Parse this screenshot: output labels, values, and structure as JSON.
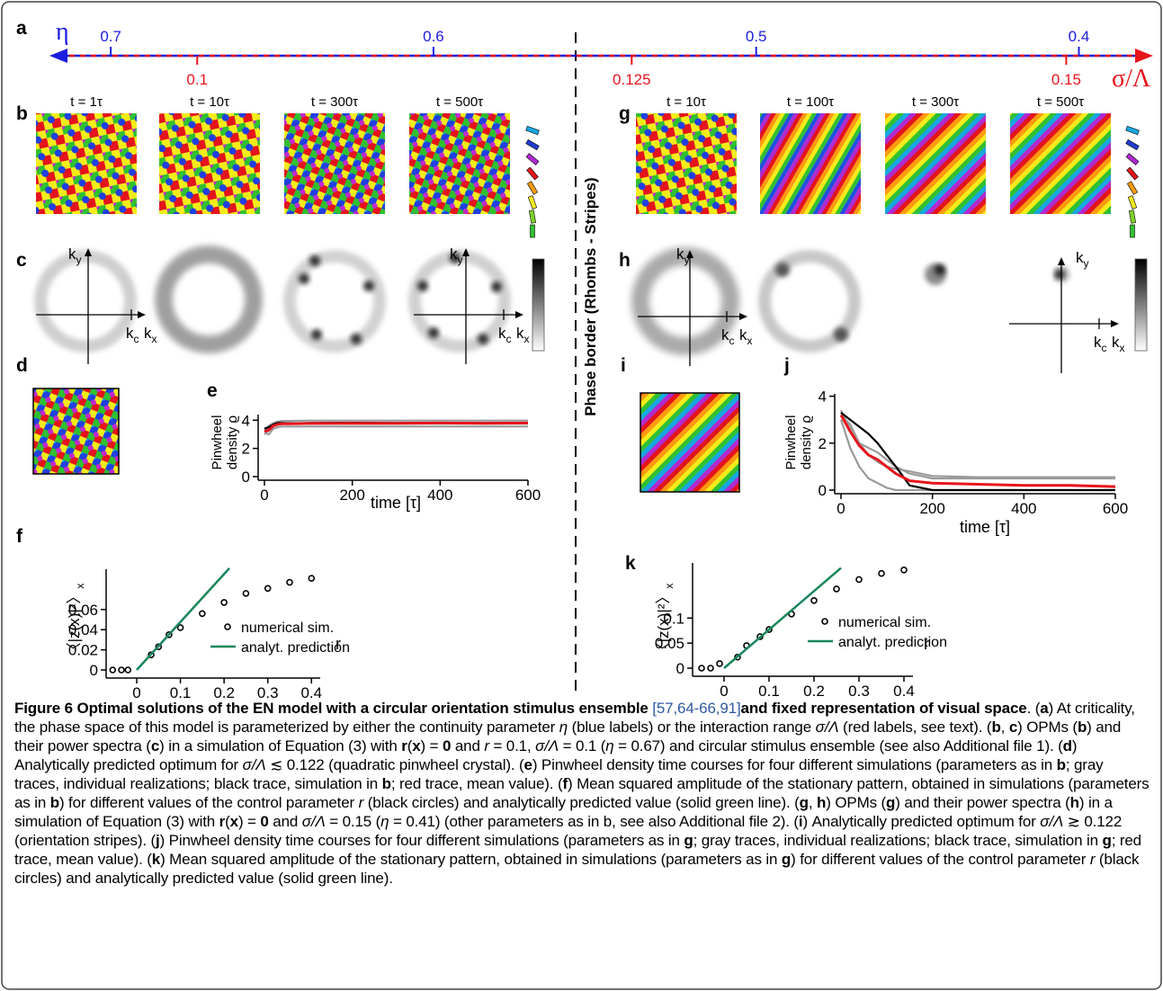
{
  "figure": {
    "panel_labels": [
      "a",
      "b",
      "c",
      "d",
      "e",
      "f",
      "g",
      "h",
      "i",
      "j",
      "k"
    ],
    "eta_symbol": "η",
    "sigma_symbol": "σ/Λ",
    "eta_axis": {
      "lim": [
        0.719,
        0.377
      ],
      "ticks": [
        0.7,
        0.6,
        0.5,
        0.4
      ]
    },
    "sigma_axis": {
      "lim": [
        0.0915,
        0.155
      ],
      "ticks": [
        0.1,
        0.125,
        0.15
      ]
    },
    "phase_border": "Phase border (Rhombs - Stripes)",
    "times_b": [
      "t = 1τ",
      "t = 10τ",
      "t = 300τ",
      "t = 500τ"
    ],
    "times_g": [
      "t = 10τ",
      "t = 100τ",
      "t = 300τ",
      "t = 500τ"
    ],
    "kspace": {
      "k": "k",
      "x": "x",
      "y": "y",
      "c": "c"
    },
    "caption": [
      {
        "text": "Figure 6 Optimal solutions of the EN model with a circular orientation stimulus ensemble ",
        "style": "b"
      },
      {
        "text": "[57,64-66,91]",
        "style": "c"
      },
      {
        "text": "and fixed representation of visual space",
        "style": "b"
      },
      {
        "text": ". (",
        "style": "n"
      },
      {
        "text": "a",
        "style": "b"
      },
      {
        "text": ") At criticality, the phase space of this model is parameterized by either the continuity parameter ",
        "style": "n"
      },
      {
        "text": "η",
        "style": "i"
      },
      {
        "text": " (blue labels) or the interaction range ",
        "style": "n"
      },
      {
        "text": "σ/Λ",
        "style": "i"
      },
      {
        "text": " (red labels, see text). (",
        "style": "n"
      },
      {
        "text": "b",
        "style": "b"
      },
      {
        "text": ", ",
        "style": "n"
      },
      {
        "text": "c",
        "style": "b"
      },
      {
        "text": ") OPMs (",
        "style": "n"
      },
      {
        "text": "b",
        "style": "b"
      },
      {
        "text": ") and their power spectra (",
        "style": "n"
      },
      {
        "text": "c",
        "style": "b"
      },
      {
        "text": ") in a simulation of Equation (3) with ",
        "style": "n"
      },
      {
        "text": "r",
        "style": "b"
      },
      {
        "text": "(",
        "style": "n"
      },
      {
        "text": "x",
        "style": "b"
      },
      {
        "text": ") = ",
        "style": "n"
      },
      {
        "text": "0",
        "style": "b"
      },
      {
        "text": " and ",
        "style": "n"
      },
      {
        "text": "r",
        "style": "i"
      },
      {
        "text": " = 0.1, ",
        "style": "n"
      },
      {
        "text": "σ/Λ",
        "style": "i"
      },
      {
        "text": " = 0.1 (",
        "style": "n"
      },
      {
        "text": "η",
        "style": "i"
      },
      {
        "text": " = 0.67) and circular stimulus ensemble (see also Additional file 1). (",
        "style": "n"
      },
      {
        "text": "d",
        "style": "b"
      },
      {
        "text": ") Analytically predicted optimum for ",
        "style": "n"
      },
      {
        "text": "σ/Λ",
        "style": "i"
      },
      {
        "text": " ≲ 0.122 (quadratic pinwheel crystal). (",
        "style": "n"
      },
      {
        "text": "e",
        "style": "b"
      },
      {
        "text": ") Pinwheel density time courses for four different simulations (parameters as in ",
        "style": "n"
      },
      {
        "text": "b",
        "style": "b"
      },
      {
        "text": "; gray traces, individual realizations; black trace, simulation in ",
        "style": "n"
      },
      {
        "text": "b",
        "style": "b"
      },
      {
        "text": "; red trace, mean value). (",
        "style": "n"
      },
      {
        "text": "f",
        "style": "b"
      },
      {
        "text": ") Mean squared amplitude of the stationary pattern, obtained in simulations (parameters as in ",
        "style": "n"
      },
      {
        "text": "b",
        "style": "b"
      },
      {
        "text": ") for different values of the control parameter ",
        "style": "n"
      },
      {
        "text": "r",
        "style": "i"
      },
      {
        "text": " (black circles) and analytically predicted value (solid green line). (",
        "style": "n"
      },
      {
        "text": "g",
        "style": "b"
      },
      {
        "text": ", ",
        "style": "n"
      },
      {
        "text": "h",
        "style": "b"
      },
      {
        "text": ") OPMs (",
        "style": "n"
      },
      {
        "text": "g",
        "style": "b"
      },
      {
        "text": ") and their power spectra (",
        "style": "n"
      },
      {
        "text": "h",
        "style": "b"
      },
      {
        "text": ") in a simulation of Equation (3) with ",
        "style": "n"
      },
      {
        "text": "r",
        "style": "b"
      },
      {
        "text": "(",
        "style": "n"
      },
      {
        "text": "x",
        "style": "b"
      },
      {
        "text": ") = ",
        "style": "n"
      },
      {
        "text": "0",
        "style": "b"
      },
      {
        "text": " and ",
        "style": "n"
      },
      {
        "text": "σ/Λ",
        "style": "i"
      },
      {
        "text": " = 0.15 (",
        "style": "n"
      },
      {
        "text": "η",
        "style": "i"
      },
      {
        "text": " = 0.41) (other parameters as in b, see also Additional file 2). (",
        "style": "n"
      },
      {
        "text": "i",
        "style": "b"
      },
      {
        "text": ") Analytically predicted optimum for ",
        "style": "n"
      },
      {
        "text": "σ/Λ",
        "style": "i"
      },
      {
        "text": " ≳ 0.122 (orientation stripes). (",
        "style": "n"
      },
      {
        "text": "j",
        "style": "b"
      },
      {
        "text": ") Pinwheel density time courses for four different simulations (parameters as in ",
        "style": "n"
      },
      {
        "text": "g",
        "style": "b"
      },
      {
        "text": "; gray traces, individual realizations; black trace, simulation in ",
        "style": "n"
      },
      {
        "text": "g",
        "style": "b"
      },
      {
        "text": "; red trace, mean value). (",
        "style": "n"
      },
      {
        "text": "k",
        "style": "b"
      },
      {
        "text": ") Mean squared amplitude of the stationary pattern, obtained in simulations (parameters as in ",
        "style": "n"
      },
      {
        "text": "g",
        "style": "b"
      },
      {
        "text": ") for different values of the control parameter ",
        "style": "n"
      },
      {
        "text": "r",
        "style": "i"
      },
      {
        "text": " (black circles) and analytically predicted value (solid green line).",
        "style": "n"
      }
    ]
  },
  "chart_data": [
    {
      "type": "line",
      "xlabel": "time [τ]",
      "ylabel": [
        "Pinwheel",
        "density ϱ"
      ],
      "xlim": [
        0,
        600
      ],
      "ylim": [
        0,
        4.4
      ],
      "xticks": [
        0,
        200,
        400,
        600
      ],
      "yticks": [
        0,
        2,
        4
      ],
      "x": [
        0,
        10,
        20,
        30,
        40,
        60,
        100,
        200,
        300,
        400,
        500,
        600
      ],
      "series": [
        {
          "color": "#9a9a9a",
          "values": [
            3.2,
            3.6,
            3.8,
            3.9,
            3.95,
            3.95,
            3.97,
            3.97,
            3.97,
            3.97,
            3.97,
            3.97
          ]
        },
        {
          "color": "#9a9a9a",
          "values": [
            3.0,
            3.3,
            3.6,
            3.7,
            3.75,
            3.75,
            3.75,
            3.75,
            3.75,
            3.75,
            3.75,
            3.75
          ]
        },
        {
          "color": "#9a9a9a",
          "values": [
            3.1,
            3.0,
            3.4,
            3.5,
            3.55,
            3.55,
            3.55,
            3.55,
            3.55,
            3.55,
            3.55,
            3.55
          ]
        },
        {
          "color": "#000000",
          "values": [
            3.4,
            3.5,
            3.7,
            3.8,
            3.8,
            3.78,
            3.8,
            3.82,
            3.8,
            3.82,
            3.8,
            3.82
          ]
        },
        {
          "color": "#e8141c",
          "values": [
            3.2,
            3.3,
            3.6,
            3.7,
            3.75,
            3.75,
            3.77,
            3.78,
            3.78,
            3.8,
            3.78,
            3.8
          ]
        }
      ]
    },
    {
      "type": "line",
      "xlabel": "time [τ]",
      "ylabel": [
        "Pinwheel",
        "density ϱ"
      ],
      "xlim": [
        0,
        600
      ],
      "ylim": [
        0,
        4.1
      ],
      "xticks": [
        0,
        200,
        400,
        600
      ],
      "yticks": [
        0,
        2,
        4
      ],
      "x": [
        0,
        20,
        40,
        60,
        80,
        100,
        120,
        150,
        200,
        300,
        400,
        500,
        600
      ],
      "series": [
        {
          "color": "#9a9a9a",
          "values": [
            3.4,
            2.6,
            2.0,
            1.5,
            1.2,
            1.0,
            0.9,
            0.8,
            0.6,
            0.55,
            0.55,
            0.55,
            0.55
          ]
        },
        {
          "color": "#9a9a9a",
          "values": [
            3.0,
            1.8,
            1.0,
            0.5,
            0.3,
            0.1,
            0,
            0,
            0,
            0,
            0,
            0,
            0
          ]
        },
        {
          "color": "#9a9a9a",
          "values": [
            3.2,
            2.8,
            2.0,
            1.8,
            1.6,
            1.3,
            1.0,
            0.7,
            0.5,
            0.5,
            0.5,
            0.5,
            0.5
          ]
        },
        {
          "color": "#000000",
          "values": [
            3.3,
            3.0,
            2.7,
            2.4,
            2.0,
            1.5,
            1.0,
            0.2,
            0,
            0,
            0,
            0,
            0
          ]
        },
        {
          "color": "#e8141c",
          "values": [
            3.2,
            2.5,
            1.9,
            1.5,
            1.3,
            1.0,
            0.7,
            0.4,
            0.3,
            0.25,
            0.2,
            0.2,
            0.15
          ]
        }
      ]
    },
    {
      "type": "scatter",
      "xlabel": "r",
      "ylabel": "〈|z(x)|²〉",
      "ylabel_sub": "x",
      "xlim": [
        -0.07,
        0.42
      ],
      "ylim": [
        0,
        0.1
      ],
      "xticks": [
        0,
        0.1,
        0.2,
        0.3,
        0.4
      ],
      "yticks": [
        0,
        0.02,
        0.04,
        0.06
      ],
      "series": [
        {
          "name": "numerical sim.",
          "style": "markers",
          "color": "#000000",
          "x": [
            -0.055,
            -0.035,
            -0.02,
            0.033,
            0.05,
            0.074,
            0.1,
            0.15,
            0.2,
            0.25,
            0.3,
            0.35,
            0.4
          ],
          "values": [
            0,
            0,
            0,
            0.015,
            0.023,
            0.035,
            0.042,
            0.056,
            0.067,
            0.076,
            0.081,
            0.087,
            0.091
          ]
        },
        {
          "name": "analyt. prediction",
          "style": "line",
          "color": "#17865a",
          "x": [
            0,
            0.212
          ],
          "values": [
            0,
            0.101
          ]
        }
      ]
    },
    {
      "type": "scatter",
      "xlabel": "r",
      "ylabel": "〈|z(x)|²〉",
      "ylabel_sub": "x",
      "xlim": [
        -0.07,
        0.42
      ],
      "ylim": [
        0,
        0.21
      ],
      "xticks": [
        0,
        0.1,
        0.2,
        0.3,
        0.4
      ],
      "yticks": [
        0,
        0.05,
        0.1
      ],
      "series": [
        {
          "name": "numerical sim.",
          "style": "markers",
          "color": "#000000",
          "x": [
            -0.05,
            -0.03,
            -0.01,
            0.03,
            0.05,
            0.08,
            0.1,
            0.15,
            0.2,
            0.25,
            0.3,
            0.35,
            0.4
          ],
          "values": [
            0,
            0,
            0.009,
            0.022,
            0.045,
            0.063,
            0.077,
            0.108,
            0.135,
            0.158,
            0.177,
            0.189,
            0.196
          ]
        },
        {
          "name": "analyt. prediction",
          "style": "line",
          "color": "#17865a",
          "x": [
            0,
            0.26
          ],
          "values": [
            0,
            0.2
          ]
        }
      ]
    }
  ]
}
